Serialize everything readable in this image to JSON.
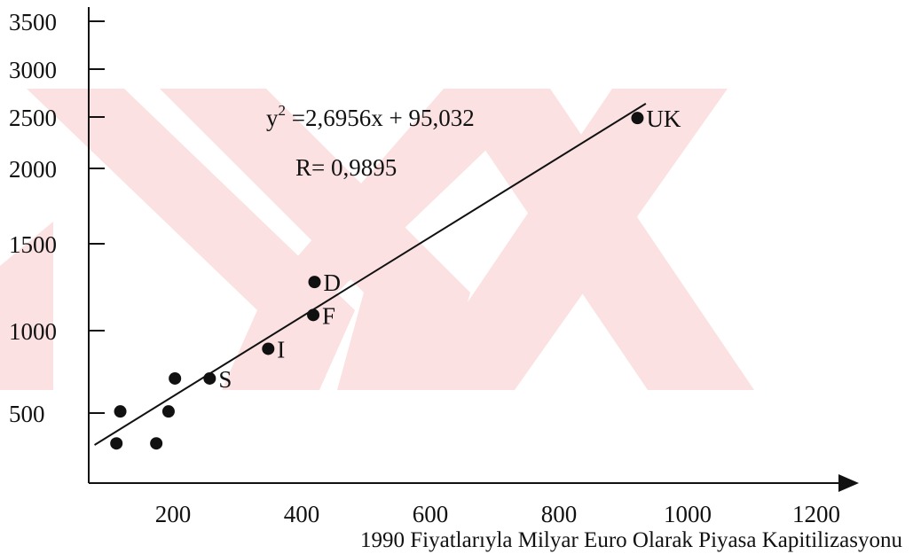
{
  "chart_data": {
    "type": "scatter",
    "title": "",
    "xlabel": "1990 Fiyatlarıyla Milyar Euro Olarak Piyasa Kapitilizasyonu",
    "ylabel": "",
    "x_ticks": [
      200,
      400,
      600,
      800,
      1000,
      1200
    ],
    "y_ticks": [
      500,
      1000,
      1500,
      2000,
      2500,
      3000,
      3500
    ],
    "points": [
      {
        "x": 112,
        "y": 310,
        "label": ""
      },
      {
        "x": 118,
        "y": 510,
        "label": ""
      },
      {
        "x": 174,
        "y": 310,
        "label": ""
      },
      {
        "x": 193,
        "y": 510,
        "label": ""
      },
      {
        "x": 203,
        "y": 710,
        "label": ""
      },
      {
        "x": 257,
        "y": 710,
        "label": "S"
      },
      {
        "x": 348,
        "y": 890,
        "label": "I"
      },
      {
        "x": 418,
        "y": 1090,
        "label": "F"
      },
      {
        "x": 420,
        "y": 1280,
        "label": "D"
      },
      {
        "x": 922,
        "y": 2490,
        "label": "UK"
      }
    ],
    "trendline": {
      "x1": 78,
      "y1": 300,
      "x2": 935,
      "y2": 2640
    },
    "annotations": {
      "equation": "y² =2,6956x + 95,032",
      "r_value": "R= 0,9895"
    },
    "grid": false,
    "legend": "none"
  },
  "watermark": "YÖK thesis watermark (faint red chevrons)",
  "colors": {
    "axis": "#111111",
    "points": "#111111",
    "watermark": "#fbe1e1"
  }
}
